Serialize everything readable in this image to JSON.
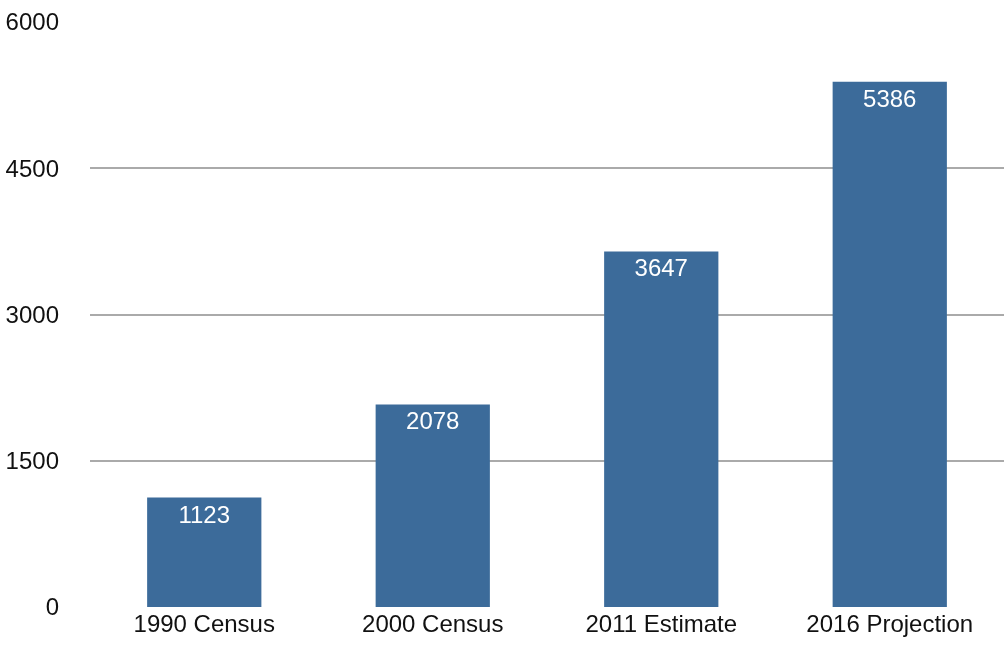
{
  "chart_data": {
    "type": "bar",
    "categories": [
      "1990 Census",
      "2000 Census",
      "2011 Estimate",
      "2016 Projection"
    ],
    "values": [
      1123,
      2078,
      3647,
      5386
    ],
    "color": "#3c6b9a",
    "data_labels": true,
    "ylim": [
      0,
      6000
    ],
    "yticks": [
      0,
      1500,
      3000,
      4500,
      6000
    ],
    "grid": "y"
  }
}
